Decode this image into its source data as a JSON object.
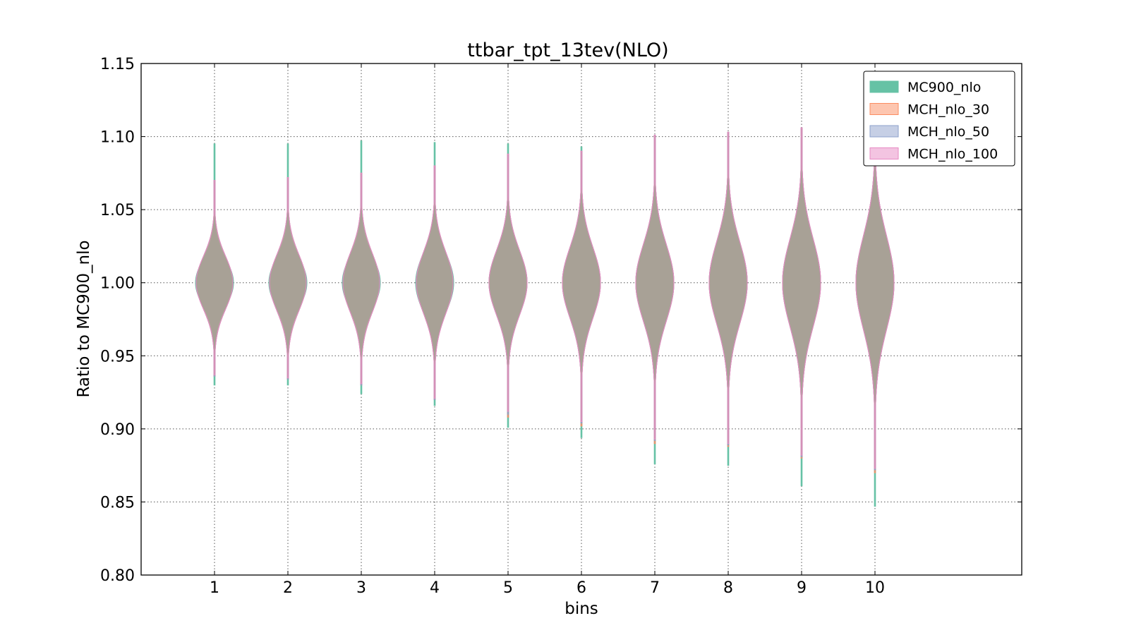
{
  "chart_data": {
    "type": "violin",
    "title": "ttbar_tpt_13tev(NLO)",
    "xlabel": "bins",
    "ylabel": "Ratio to MC900_nlo",
    "ylim": [
      0.8,
      1.15
    ],
    "xlim": [
      0,
      12
    ],
    "yticks": [
      "0.80",
      "0.85",
      "0.90",
      "0.95",
      "1.00",
      "1.05",
      "1.10",
      "1.15"
    ],
    "categories": [
      "1",
      "2",
      "3",
      "4",
      "5",
      "6",
      "7",
      "8",
      "9",
      "10"
    ],
    "grid": true,
    "legend_position": "top-right",
    "series": [
      {
        "name": "MC900_nlo",
        "fill": "#66c2a5",
        "edge": "#66c2a5",
        "min": [
          0.93,
          0.93,
          0.924,
          0.916,
          0.901,
          0.894,
          0.876,
          0.875,
          0.861,
          0.847
        ],
        "max": [
          1.095,
          1.095,
          1.097,
          1.096,
          1.095,
          1.093,
          1.1,
          1.103,
          1.105,
          1.11
        ],
        "half_width": [
          0.26,
          0.26,
          0.26,
          0.26,
          0.26,
          0.26,
          0.26,
          0.26,
          0.26,
          0.26
        ],
        "spread": [
          0.016,
          0.017,
          0.018,
          0.02,
          0.022,
          0.024,
          0.026,
          0.028,
          0.03,
          0.032
        ]
      },
      {
        "name": "MCH_nlo_30",
        "fill": "#fc8d62",
        "edge": "#fc8d62",
        "min": [
          0.936,
          0.934,
          0.93,
          0.92,
          0.908,
          0.902,
          0.89,
          0.888,
          0.88,
          0.87
        ],
        "max": [
          1.07,
          1.072,
          1.075,
          1.08,
          1.088,
          1.09,
          1.101,
          1.103,
          1.106,
          1.11
        ],
        "half_width": [
          0.25,
          0.25,
          0.25,
          0.25,
          0.26,
          0.26,
          0.26,
          0.26,
          0.26,
          0.26
        ],
        "spread": [
          0.018,
          0.019,
          0.02,
          0.021,
          0.022,
          0.024,
          0.026,
          0.028,
          0.03,
          0.032
        ]
      },
      {
        "name": "MCH_nlo_50",
        "fill": "#8da0cb",
        "edge": "#8da0cb",
        "min": [
          0.936,
          0.934,
          0.93,
          0.92,
          0.91,
          0.904,
          0.892,
          0.889,
          0.881,
          0.872
        ],
        "max": [
          1.07,
          1.072,
          1.075,
          1.08,
          1.088,
          1.09,
          1.101,
          1.103,
          1.106,
          1.11
        ],
        "half_width": [
          0.25,
          0.25,
          0.25,
          0.25,
          0.26,
          0.26,
          0.26,
          0.26,
          0.26,
          0.26
        ],
        "spread": [
          0.018,
          0.019,
          0.02,
          0.021,
          0.022,
          0.024,
          0.026,
          0.028,
          0.03,
          0.032
        ]
      },
      {
        "name": "MCH_nlo_100",
        "fill": "#e78ac3",
        "edge": "#e78ac3",
        "min": [
          0.937,
          0.935,
          0.931,
          0.921,
          0.912,
          0.905,
          0.893,
          0.89,
          0.882,
          0.873
        ],
        "max": [
          1.07,
          1.072,
          1.075,
          1.08,
          1.088,
          1.09,
          1.101,
          1.103,
          1.106,
          1.11
        ],
        "half_width": [
          0.25,
          0.25,
          0.25,
          0.25,
          0.26,
          0.26,
          0.26,
          0.26,
          0.26,
          0.26
        ],
        "spread": [
          0.018,
          0.019,
          0.02,
          0.021,
          0.022,
          0.024,
          0.026,
          0.028,
          0.03,
          0.032
        ]
      }
    ],
    "overlap_fill": "#ae9f96"
  }
}
